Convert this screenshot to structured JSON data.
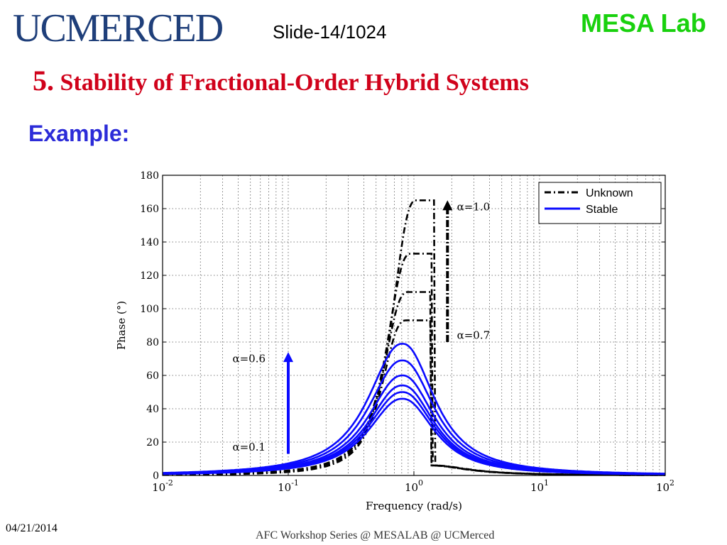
{
  "header": {
    "logo_text": "UCMERCED",
    "slide_label": "Slide-14/1024",
    "lab_label": "MESA Lab"
  },
  "title": {
    "number": "5.",
    "text": "Stability of Fractional-Order Hybrid Systems"
  },
  "subtitle": "Example:",
  "footer": {
    "date": "04/21/2014",
    "center": "AFC Workshop Series @ MESALAB @ UCMerced"
  },
  "colors": {
    "title": "#d0021b",
    "example": "#2c2cd8",
    "lab": "#19d10e",
    "logo": "#1f3f7a",
    "stable": "#0a0aff",
    "unknown": "#000000"
  },
  "chart_data": {
    "type": "line",
    "xscale": "log",
    "xlim": [
      0.01,
      100
    ],
    "ylim": [
      0,
      180
    ],
    "grid": true,
    "xlabel": "Frequency (rad/s)",
    "ylabel": "Phase (°)",
    "x_ticks": [
      {
        "value": 0.01,
        "base": "10",
        "exp": "-2"
      },
      {
        "value": 0.1,
        "base": "10",
        "exp": "-1"
      },
      {
        "value": 1,
        "base": "10",
        "exp": "0"
      },
      {
        "value": 10,
        "base": "10",
        "exp": "1"
      },
      {
        "value": 100,
        "base": "10",
        "exp": "2"
      }
    ],
    "y_ticks": [
      0,
      20,
      40,
      60,
      80,
      100,
      120,
      140,
      160,
      180
    ],
    "legend": {
      "placement": "top-right",
      "entries": [
        {
          "label": "Unknown",
          "style": "dashdot",
          "color": "#000000"
        },
        {
          "label": "Stable",
          "style": "solid",
          "color": "#0a0aff"
        }
      ]
    },
    "annotations": [
      {
        "text": "α=1.0",
        "x": 2.2,
        "y": 161
      },
      {
        "text": "α=0.7",
        "x": 2.2,
        "y": 84
      },
      {
        "text": "α=0.6",
        "x": 0.036,
        "y": 70
      },
      {
        "text": "α=0.1",
        "x": 0.036,
        "y": 17
      }
    ],
    "arrows": [
      {
        "color": "#0a0aff",
        "x": 0.1,
        "y_from": 13,
        "y_to": 74
      },
      {
        "color": "#000000",
        "x": 1.85,
        "y_from": 80,
        "y_to": 165
      }
    ],
    "stable_series": [
      {
        "peak_x": 0.81,
        "peak_y": 79
      },
      {
        "peak_x": 0.81,
        "peak_y": 69
      },
      {
        "peak_x": 0.81,
        "peak_y": 60
      },
      {
        "peak_x": 0.81,
        "peak_y": 54
      },
      {
        "peak_x": 0.81,
        "peak_y": 50
      },
      {
        "peak_x": 0.81,
        "peak_y": 46
      }
    ],
    "unknown_series": [
      {
        "peak_x": 1.05,
        "peak_y": 165,
        "drop_x": 1.45
      },
      {
        "peak_x": 0.95,
        "peak_y": 133,
        "drop_x": 1.4
      },
      {
        "peak_x": 0.9,
        "peak_y": 110,
        "drop_x": 1.38
      },
      {
        "peak_x": 0.87,
        "peak_y": 93,
        "drop_x": 1.36
      }
    ]
  }
}
